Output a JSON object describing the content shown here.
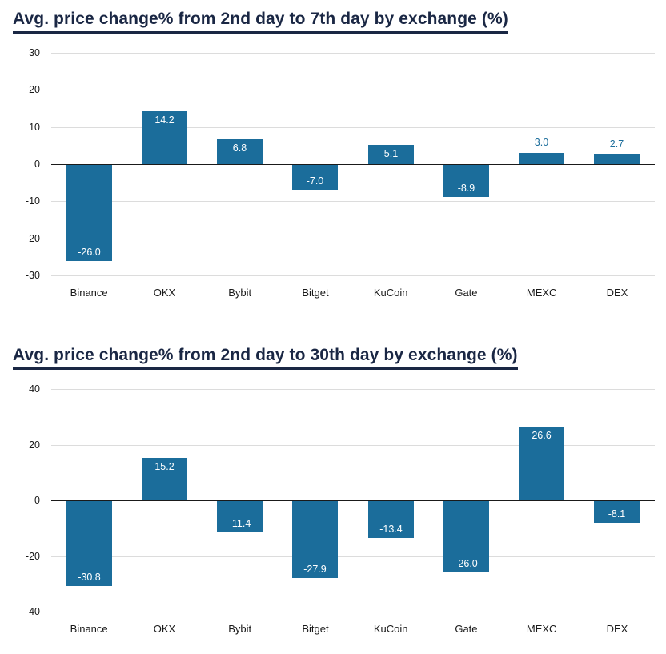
{
  "colors": {
    "bar": "#1b6d9b",
    "title": "#1a2744",
    "grid": "#dcdcdc",
    "axis": "#1a1a1a"
  },
  "chart_data": [
    {
      "type": "bar",
      "title": "Avg. price change% from 2nd day to 7th day by exchange (%)",
      "categories": [
        "Binance",
        "OKX",
        "Bybit",
        "Bitget",
        "KuCoin",
        "Gate",
        "MEXC",
        "DEX"
      ],
      "values": [
        -26.0,
        14.2,
        6.8,
        -7.0,
        5.1,
        -8.9,
        3.0,
        2.7
      ],
      "ylim": [
        -30,
        30
      ],
      "yticks": [
        30,
        20,
        10,
        0,
        -10,
        -20,
        -30
      ],
      "xlabel": "",
      "ylabel": "",
      "grid": "horizontal",
      "legend": "none"
    },
    {
      "type": "bar",
      "title": "Avg. price change% from 2nd day to 30th day by exchange (%)",
      "categories": [
        "Binance",
        "OKX",
        "Bybit",
        "Bitget",
        "KuCoin",
        "Gate",
        "MEXC",
        "DEX"
      ],
      "values": [
        -30.8,
        15.2,
        -11.4,
        -27.9,
        -13.4,
        -26.0,
        26.6,
        -8.1
      ],
      "ylim": [
        -40,
        40
      ],
      "yticks": [
        40,
        20,
        0,
        -20,
        -40
      ],
      "xlabel": "",
      "ylabel": "",
      "grid": "horizontal",
      "legend": "none"
    }
  ]
}
